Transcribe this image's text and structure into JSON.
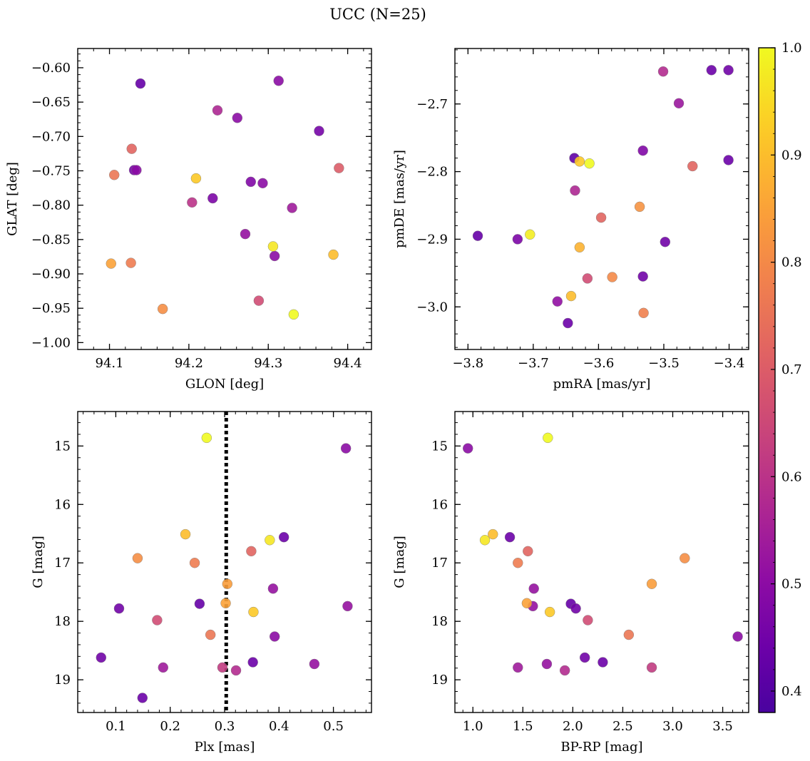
{
  "figure": {
    "suptitle": "UCC (N=25)",
    "colorbar": {
      "range": [
        0.38,
        1.0
      ],
      "ticks": [
        0.4,
        0.5,
        0.6,
        0.7,
        0.8,
        0.9,
        1.0
      ],
      "tick_labels": [
        "0.4",
        "0.5",
        "0.6",
        "0.7",
        "0.8",
        "0.9",
        "1.0"
      ],
      "colormap": "plasma"
    }
  },
  "chart_data": [
    {
      "type": "scatter",
      "id": "glon-glat",
      "xlabel": "GLON [deg]",
      "ylabel": "GLAT [deg]",
      "xlim": [
        94.06,
        94.43
      ],
      "ylim": [
        -1.01,
        -0.572
      ],
      "xticks": [
        94.1,
        94.2,
        94.3,
        94.4
      ],
      "xtick_labels": [
        "94.1",
        "94.2",
        "94.3",
        "94.4"
      ],
      "yticks": [
        -1.0,
        -0.95,
        -0.9,
        -0.85,
        -0.8,
        -0.75,
        -0.7,
        -0.65,
        -0.6
      ],
      "ytick_labels": [
        "−1.00",
        "−0.95",
        "−0.90",
        "−0.85",
        "−0.80",
        "−0.75",
        "−0.70",
        "−0.65",
        "−0.60"
      ],
      "x": [
        94.139,
        94.313,
        94.236,
        94.261,
        94.364,
        94.128,
        94.106,
        94.131,
        94.134,
        94.209,
        94.389,
        94.278,
        94.293,
        94.204,
        94.23,
        94.33,
        94.271,
        94.306,
        94.308,
        94.102,
        94.127,
        94.382,
        94.288,
        94.167,
        94.332
      ],
      "y": [
        -0.623,
        -0.619,
        -0.662,
        -0.673,
        -0.692,
        -0.718,
        -0.756,
        -0.749,
        -0.749,
        -0.761,
        -0.746,
        -0.766,
        -0.768,
        -0.796,
        -0.79,
        -0.804,
        -0.842,
        -0.86,
        -0.874,
        -0.885,
        -0.884,
        -0.872,
        -0.939,
        -0.951,
        -0.959
      ]
    },
    {
      "type": "scatter",
      "id": "pmra-pmde",
      "xlabel": "pmRA [mas/yr]",
      "ylabel": "pmDE [mas/yr]",
      "xlim": [
        -3.82,
        -3.37
      ],
      "ylim": [
        -3.063,
        -2.618
      ],
      "xticks": [
        -3.8,
        -3.7,
        -3.6,
        -3.5,
        -3.4
      ],
      "xtick_labels": [
        "−3.8",
        "−3.7",
        "−3.6",
        "−3.5",
        "−3.4"
      ],
      "yticks": [
        -3.0,
        -2.9,
        -2.8,
        -2.7
      ],
      "ytick_labels": [
        "−3.0",
        "−2.9",
        "−2.8",
        "−2.7"
      ],
      "x": [
        -3.501,
        -3.427,
        -3.401,
        -3.477,
        -3.532,
        -3.637,
        -3.629,
        -3.614,
        -3.401,
        -3.456,
        -3.636,
        -3.596,
        -3.537,
        -3.785,
        -3.724,
        -3.705,
        -3.629,
        -3.498,
        -3.617,
        -3.579,
        -3.532,
        -3.642,
        -3.663,
        -3.531,
        -3.647
      ],
      "y": [
        -2.652,
        -2.65,
        -2.65,
        -2.699,
        -2.769,
        -2.78,
        -2.785,
        -2.788,
        -2.783,
        -2.792,
        -2.828,
        -2.868,
        -2.852,
        -2.895,
        -2.9,
        -2.893,
        -2.912,
        -2.904,
        -2.958,
        -2.956,
        -2.955,
        -2.984,
        -2.992,
        -3.009,
        -3.024
      ]
    },
    {
      "type": "scatter",
      "id": "plx-g",
      "xlabel": "Plx [mas]",
      "ylabel": "G [mag]",
      "xlim": [
        0.03,
        0.57
      ],
      "ylim": [
        19.56,
        14.41
      ],
      "xticks": [
        0.1,
        0.2,
        0.3,
        0.4,
        0.5
      ],
      "xtick_labels": [
        "0.1",
        "0.2",
        "0.3",
        "0.4",
        "0.5"
      ],
      "yticks": [
        15,
        16,
        17,
        18,
        19
      ],
      "ytick_labels": [
        "15",
        "16",
        "17",
        "18",
        "19"
      ],
      "vline": 0.303,
      "x": [
        0.267,
        0.523,
        0.228,
        0.409,
        0.383,
        0.349,
        0.14,
        0.245,
        0.389,
        0.305,
        0.254,
        0.106,
        0.526,
        0.302,
        0.353,
        0.176,
        0.274,
        0.392,
        0.073,
        0.352,
        0.465,
        0.187,
        0.296,
        0.321,
        0.149
      ],
      "y": [
        14.86,
        15.04,
        16.51,
        16.56,
        16.61,
        16.8,
        16.92,
        17.0,
        17.44,
        17.36,
        17.7,
        17.78,
        17.74,
        17.69,
        17.84,
        17.98,
        18.23,
        18.26,
        18.62,
        18.7,
        18.73,
        18.79,
        18.79,
        18.84,
        19.31
      ]
    },
    {
      "type": "scatter",
      "id": "bprp-g",
      "xlabel": "BP-RP [mag]",
      "ylabel": "G [mag]",
      "xlim": [
        0.82,
        3.76
      ],
      "ylim": [
        19.56,
        14.41
      ],
      "xticks": [
        1.0,
        1.5,
        2.0,
        2.5,
        3.0,
        3.5
      ],
      "xtick_labels": [
        "1.0",
        "1.5",
        "2.0",
        "2.5",
        "3.0",
        "3.5"
      ],
      "yticks": [
        15,
        16,
        17,
        18,
        19
      ],
      "ytick_labels": [
        "15",
        "16",
        "17",
        "18",
        "19"
      ],
      "x": [
        1.75,
        0.95,
        1.2,
        1.37,
        1.12,
        1.55,
        3.12,
        1.45,
        1.61,
        2.79,
        1.98,
        2.03,
        1.54,
        1.77,
        2.15,
        2.56,
        3.65,
        2.3,
        2.12,
        1.74,
        1.45,
        2.79,
        1.92,
        1.6
      ],
      "y": [
        14.86,
        15.04,
        16.51,
        16.56,
        16.61,
        16.8,
        16.92,
        17.0,
        17.44,
        17.36,
        17.7,
        17.78,
        17.69,
        17.84,
        17.98,
        18.23,
        18.26,
        18.7,
        18.62,
        18.73,
        18.79,
        18.79,
        18.84,
        17.74
      ]
    }
  ],
  "membership": {
    "glon-glat": [
      0.43,
      0.5,
      0.57,
      0.5,
      0.46,
      0.72,
      0.76,
      0.46,
      0.5,
      0.92,
      0.7,
      0.48,
      0.5,
      0.6,
      0.47,
      0.54,
      0.52,
      0.97,
      0.5,
      0.85,
      0.77,
      0.9,
      0.66,
      0.81,
      1.0
    ],
    "pmra-pmde": [
      0.58,
      0.44,
      0.45,
      0.53,
      0.48,
      0.42,
      0.92,
      1.0,
      0.44,
      0.72,
      0.57,
      0.72,
      0.82,
      0.43,
      0.47,
      0.98,
      0.88,
      0.45,
      0.66,
      0.8,
      0.45,
      0.9,
      0.51,
      0.78,
      0.44
    ],
    "plx-g": [
      1.0,
      0.5,
      0.9,
      0.44,
      0.97,
      0.72,
      0.81,
      0.77,
      0.52,
      0.84,
      0.43,
      0.45,
      0.52,
      0.85,
      0.92,
      0.66,
      0.76,
      0.5,
      0.45,
      0.44,
      0.52,
      0.54,
      0.62,
      0.58,
      0.44
    ],
    "bprp-g": [
      1.0,
      0.5,
      0.9,
      0.44,
      0.97,
      0.72,
      0.81,
      0.77,
      0.52,
      0.84,
      0.43,
      0.45,
      0.85,
      0.92,
      0.66,
      0.76,
      0.5,
      0.44,
      0.45,
      0.52,
      0.54,
      0.62,
      0.58,
      0.52
    ]
  }
}
